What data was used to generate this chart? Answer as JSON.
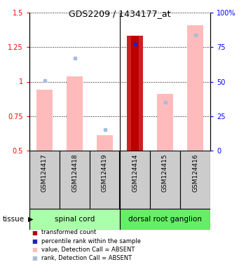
{
  "title": "GDS2209 / 1434177_at",
  "samples": [
    "GSM124417",
    "GSM124418",
    "GSM124419",
    "GSM124414",
    "GSM124415",
    "GSM124416"
  ],
  "value_bars": [
    0.94,
    1.04,
    0.61,
    1.33,
    0.91,
    1.41
  ],
  "rank_dots": [
    1.01,
    1.17,
    0.65,
    1.27,
    0.85,
    1.34
  ],
  "value_bars_absent": [
    true,
    true,
    true,
    false,
    true,
    true
  ],
  "rank_dots_absent": [
    true,
    true,
    true,
    false,
    true,
    true
  ],
  "transformed_count": [
    null,
    null,
    null,
    1.33,
    null,
    null
  ],
  "transformed_count_color": "#bb0000",
  "value_bar_color_present": "#cc2222",
  "value_bar_color_absent": "#ffbbbb",
  "rank_dot_color_present": "#2222bb",
  "rank_dot_color_absent": "#aabbdd",
  "ylim_left": [
    0.5,
    1.5
  ],
  "ylim_right": [
    0,
    100
  ],
  "yticks_left": [
    0.5,
    0.75,
    1.0,
    1.25,
    1.5
  ],
  "yticks_right": [
    0,
    25,
    50,
    75,
    100
  ],
  "tissue_labels": [
    "spinal cord",
    "dorsal root ganglion"
  ],
  "tissue_color1": "#aaffaa",
  "tissue_color2": "#66ee66",
  "sample_box_color": "#cccccc",
  "bar_width": 0.55,
  "legend_items": [
    {
      "color": "#bb0000",
      "label": "transformed count"
    },
    {
      "color": "#2222bb",
      "label": "percentile rank within the sample"
    },
    {
      "color": "#ffbbbb",
      "label": "value, Detection Call = ABSENT"
    },
    {
      "color": "#aabbdd",
      "label": "rank, Detection Call = ABSENT"
    }
  ]
}
